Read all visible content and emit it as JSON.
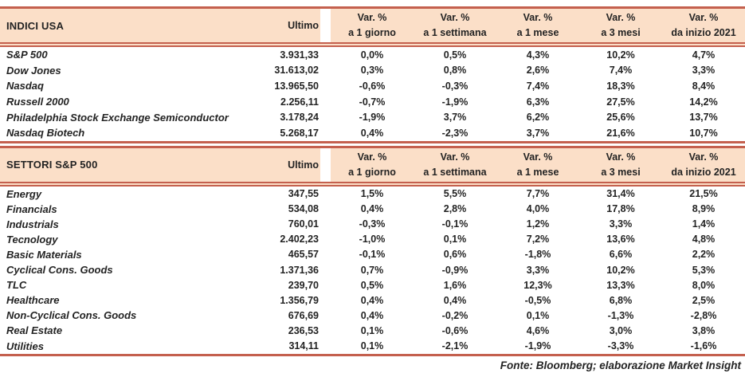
{
  "colors": {
    "header_fill": "#FBDFC8",
    "rule_line": "#C4604E",
    "text": "#232323"
  },
  "columns": {
    "ultimo_label": "Ultimo",
    "var_label": "Var. %",
    "periods": [
      "a 1 giorno",
      "a 1 settimana",
      "a 1 mese",
      "a 3 mesi",
      "da inizio 2021"
    ]
  },
  "tables": [
    {
      "title": "INDICI USA",
      "rows": [
        {
          "name": "S&P 500",
          "ultimo": "3.931,33",
          "vars": [
            "0,0%",
            "0,5%",
            "4,3%",
            "10,2%",
            "4,7%"
          ]
        },
        {
          "name": "Dow Jones",
          "ultimo": "31.613,02",
          "vars": [
            "0,3%",
            "0,8%",
            "2,6%",
            "7,4%",
            "3,3%"
          ]
        },
        {
          "name": "Nasdaq",
          "ultimo": "13.965,50",
          "vars": [
            "-0,6%",
            "-0,3%",
            "7,4%",
            "18,3%",
            "8,4%"
          ]
        },
        {
          "name": "Russell 2000",
          "ultimo": "2.256,11",
          "vars": [
            "-0,7%",
            "-1,9%",
            "6,3%",
            "27,5%",
            "14,2%"
          ]
        },
        {
          "name": "Philadelphia Stock Exchange Semiconductor",
          "ultimo": "3.178,24",
          "vars": [
            "-1,9%",
            "3,7%",
            "6,2%",
            "25,6%",
            "13,7%"
          ]
        },
        {
          "name": "Nasdaq Biotech",
          "ultimo": "5.268,17",
          "vars": [
            "0,4%",
            "-2,3%",
            "3,7%",
            "21,6%",
            "10,7%"
          ]
        }
      ]
    },
    {
      "title": "SETTORI S&P 500",
      "rows": [
        {
          "name": "Energy",
          "ultimo": "347,55",
          "vars": [
            "1,5%",
            "5,5%",
            "7,7%",
            "31,4%",
            "21,5%"
          ]
        },
        {
          "name": "Financials",
          "ultimo": "534,08",
          "vars": [
            "0,4%",
            "2,8%",
            "4,0%",
            "17,8%",
            "8,9%"
          ]
        },
        {
          "name": "Industrials",
          "ultimo": "760,01",
          "vars": [
            "-0,3%",
            "-0,1%",
            "1,2%",
            "3,3%",
            "1,4%"
          ]
        },
        {
          "name": "Tecnology",
          "ultimo": "2.402,23",
          "vars": [
            "-1,0%",
            "0,1%",
            "7,2%",
            "13,6%",
            "4,8%"
          ]
        },
        {
          "name": "Basic Materials",
          "ultimo": "465,57",
          "vars": [
            "-0,1%",
            "0,6%",
            "-1,8%",
            "6,6%",
            "2,2%"
          ]
        },
        {
          "name": "Cyclical Cons. Goods",
          "ultimo": "1.371,36",
          "vars": [
            "0,7%",
            "-0,9%",
            "3,3%",
            "10,2%",
            "5,3%"
          ]
        },
        {
          "name": "TLC",
          "ultimo": "239,70",
          "vars": [
            "0,5%",
            "1,6%",
            "12,3%",
            "13,3%",
            "8,0%"
          ]
        },
        {
          "name": "Healthcare",
          "ultimo": "1.356,79",
          "vars": [
            "0,4%",
            "0,4%",
            "-0,5%",
            "6,8%",
            "2,5%"
          ]
        },
        {
          "name": "Non-Cyclical Cons. Goods",
          "ultimo": "676,69",
          "vars": [
            "0,4%",
            "-0,2%",
            "0,1%",
            "-1,3%",
            "-2,8%"
          ]
        },
        {
          "name": "Real Estate",
          "ultimo": "236,53",
          "vars": [
            "0,1%",
            "-0,6%",
            "4,6%",
            "3,0%",
            "3,8%"
          ]
        },
        {
          "name": "Utilities",
          "ultimo": "314,11",
          "vars": [
            "0,1%",
            "-2,1%",
            "-1,9%",
            "-3,3%",
            "-1,6%"
          ]
        }
      ]
    }
  ],
  "footer": {
    "source": "Fonte: Bloomberg; elaborazione Market Insight"
  }
}
